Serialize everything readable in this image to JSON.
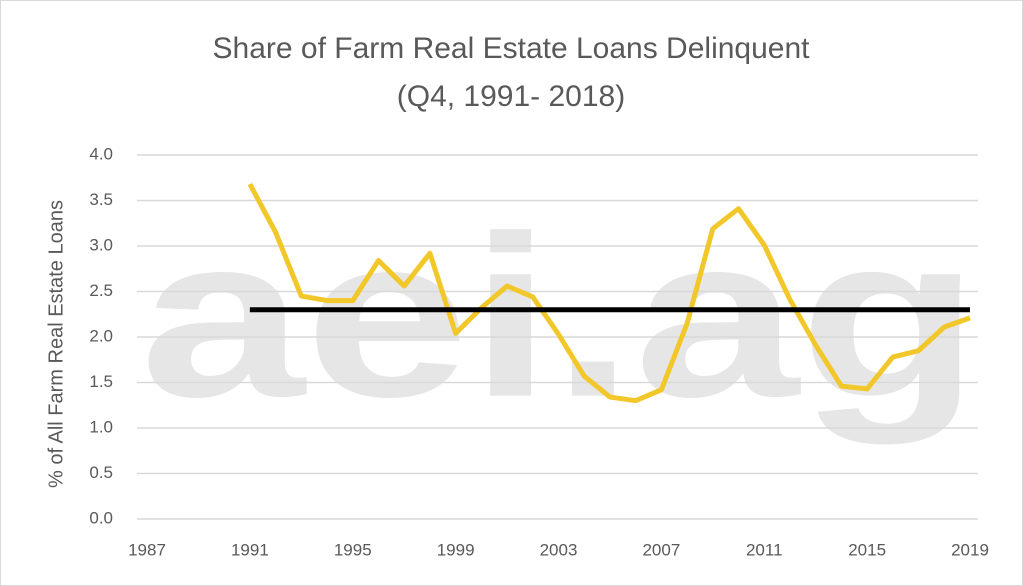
{
  "chart_data": {
    "type": "line",
    "title": "Share of Farm Real Estate Loans Delinquent",
    "subtitle": "(Q4, 1991- 2018)",
    "y_label": "% of All Farm Real Estate Loans",
    "watermark": "aei.ag",
    "x": [
      1991,
      1992,
      1993,
      1994,
      1995,
      1996,
      1997,
      1998,
      1999,
      2000,
      2001,
      2002,
      2003,
      2004,
      2005,
      2006,
      2007,
      2008,
      2009,
      2010,
      2011,
      2012,
      2013,
      2014,
      2015,
      2016,
      2017,
      2018,
      2019
    ],
    "series": [
      {
        "color": "#f2c72a",
        "values": [
          3.68,
          3.15,
          2.45,
          2.4,
          2.4,
          2.84,
          2.56,
          2.92,
          2.04,
          2.32,
          2.56,
          2.44,
          2.03,
          1.57,
          1.34,
          1.3,
          1.42,
          2.15,
          3.19,
          3.41,
          3.01,
          2.41,
          1.91,
          1.46,
          1.43,
          1.78,
          1.85,
          2.11,
          2.21
        ]
      },
      {
        "color": "#000000",
        "values": [
          2.3,
          2.3,
          2.3,
          2.3,
          2.3,
          2.3,
          2.3,
          2.3,
          2.3,
          2.3,
          2.3,
          2.3,
          2.3,
          2.3,
          2.3,
          2.3,
          2.3,
          2.3,
          2.3,
          2.3,
          2.3,
          2.3,
          2.3,
          2.3,
          2.3,
          2.3,
          2.3,
          2.3,
          2.3
        ]
      }
    ],
    "xlim": [
      1987,
      2019
    ],
    "xticks": [
      1987,
      1991,
      1995,
      1999,
      2003,
      2007,
      2011,
      2015,
      2019
    ],
    "ylim": [
      0,
      4
    ],
    "yticks": [
      {
        "value": 0,
        "label": "0.0"
      },
      {
        "value": 0.5,
        "label": "0.5"
      },
      {
        "value": 1,
        "label": "1.0"
      },
      {
        "value": 1.5,
        "label": "1.5"
      },
      {
        "value": 2,
        "label": "2.0"
      },
      {
        "value": 2.5,
        "label": "2.5"
      },
      {
        "value": 3,
        "label": "3.0"
      },
      {
        "value": 3.5,
        "label": "3.5"
      },
      {
        "value": 4,
        "label": "4.0"
      }
    ],
    "grid": true
  }
}
